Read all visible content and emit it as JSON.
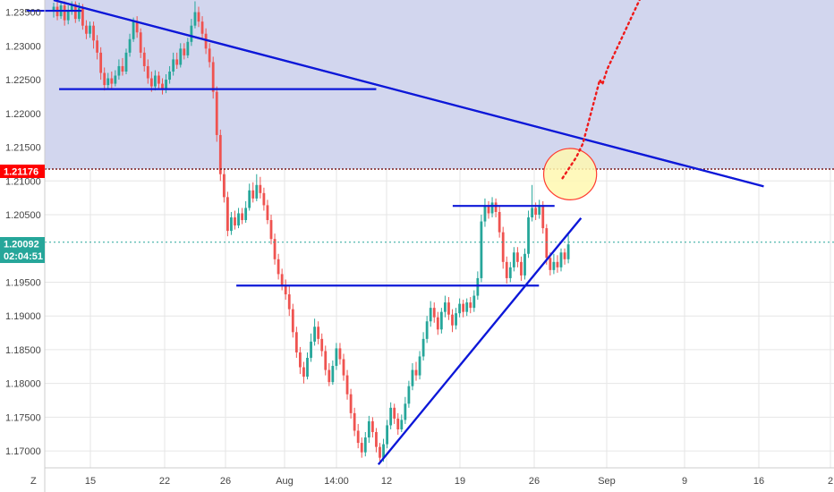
{
  "chart_data": {
    "type": "candlestick",
    "y_ticks": [
      "1.23500",
      "1.23000",
      "1.22500",
      "1.22000",
      "1.21500",
      "1.21000",
      "1.20500",
      "1.19500",
      "1.19000",
      "1.18500",
      "1.18000",
      "1.17500",
      "1.17000"
    ],
    "x_ticks": [
      "15",
      "22",
      "26",
      "Aug",
      "14:00",
      "12",
      "19",
      "26",
      "Sep",
      "9",
      "16",
      "2"
    ],
    "y_range": [
      1.1675,
      1.2368
    ],
    "resistance_level": {
      "label": "1.21176",
      "value": 1.21176,
      "color": "#ff0000"
    },
    "current_price": {
      "label": "1.20092",
      "value": 1.20092,
      "countdown": "02:04:51",
      "color": "#26a69a"
    },
    "timezone_label": "Z",
    "colors": {
      "up": "#26a69a",
      "down": "#ef5350",
      "trendline": "#0d18d8",
      "zone": "#d2d6ee",
      "projection": "#ef1a1a",
      "circle_fill": "#fff8b0",
      "circle_stroke": "#ff3b30"
    },
    "candles": [
      [
        1.2352,
        1.2358,
        1.2364,
        1.2342
      ],
      [
        1.2358,
        1.2344,
        1.2366,
        1.2338
      ],
      [
        1.2344,
        1.236,
        1.2366,
        1.234
      ],
      [
        1.236,
        1.2338,
        1.2366,
        1.233
      ],
      [
        1.2338,
        1.2352,
        1.236,
        1.2332
      ],
      [
        1.2352,
        1.2362,
        1.2366,
        1.2346
      ],
      [
        1.2362,
        1.234,
        1.2366,
        1.2334
      ],
      [
        1.234,
        1.2356,
        1.2364,
        1.2336
      ],
      [
        1.2356,
        1.233,
        1.2362,
        1.2324
      ],
      [
        1.233,
        1.2318,
        1.2338,
        1.231
      ],
      [
        1.2318,
        1.233,
        1.2336,
        1.2312
      ],
      [
        1.233,
        1.2308,
        1.2336,
        1.2296
      ],
      [
        1.2308,
        1.229,
        1.2316,
        1.228
      ],
      [
        1.229,
        1.226,
        1.2298,
        1.225
      ],
      [
        1.226,
        1.2242,
        1.2268,
        1.2234
      ],
      [
        1.2242,
        1.2252,
        1.226,
        1.2236
      ],
      [
        1.2252,
        1.2244,
        1.2262,
        1.2236
      ],
      [
        1.2244,
        1.2256,
        1.2264,
        1.224
      ],
      [
        1.2256,
        1.227,
        1.228,
        1.225
      ],
      [
        1.227,
        1.2262,
        1.2282,
        1.2256
      ],
      [
        1.2262,
        1.229,
        1.2296,
        1.2258
      ],
      [
        1.229,
        1.231,
        1.2318,
        1.2284
      ],
      [
        1.231,
        1.2336,
        1.2342,
        1.2306
      ],
      [
        1.2336,
        1.232,
        1.2344,
        1.2312
      ],
      [
        1.232,
        1.229,
        1.2326,
        1.2282
      ],
      [
        1.229,
        1.227,
        1.2298,
        1.2262
      ],
      [
        1.227,
        1.2252,
        1.228,
        1.2244
      ],
      [
        1.2252,
        1.224,
        1.2262,
        1.2232
      ],
      [
        1.224,
        1.2256,
        1.2264,
        1.2234
      ],
      [
        1.2256,
        1.2244,
        1.2262,
        1.2236
      ],
      [
        1.2244,
        1.2236,
        1.2252,
        1.2228
      ],
      [
        1.2236,
        1.225,
        1.2258,
        1.223
      ],
      [
        1.225,
        1.2262,
        1.227,
        1.2244
      ],
      [
        1.2262,
        1.228,
        1.229,
        1.2256
      ],
      [
        1.228,
        1.2272,
        1.229,
        1.2266
      ],
      [
        1.2272,
        1.2296,
        1.2304,
        1.2268
      ],
      [
        1.2296,
        1.2286,
        1.2304,
        1.228
      ],
      [
        1.2286,
        1.2306,
        1.2312,
        1.2282
      ],
      [
        1.2306,
        1.233,
        1.234,
        1.23
      ],
      [
        1.233,
        1.235,
        1.2366,
        1.2326
      ],
      [
        1.235,
        1.2336,
        1.2358,
        1.2328
      ],
      [
        1.2336,
        1.2318,
        1.2344,
        1.231
      ],
      [
        1.2318,
        1.2296,
        1.2326,
        1.2288
      ],
      [
        1.2296,
        1.2276,
        1.2304,
        1.2268
      ],
      [
        1.2276,
        1.2232,
        1.2284,
        1.2222
      ],
      [
        1.2232,
        1.2168,
        1.224,
        1.2158
      ],
      [
        1.2168,
        1.211,
        1.2176,
        1.21
      ],
      [
        1.211,
        1.2076,
        1.2118,
        1.2068
      ],
      [
        1.2076,
        1.2026,
        1.2084,
        1.2018
      ],
      [
        1.2026,
        1.2046,
        1.2054,
        1.202
      ],
      [
        1.2046,
        1.2034,
        1.2056,
        1.2028
      ],
      [
        1.2034,
        1.2052,
        1.206,
        1.203
      ],
      [
        1.2052,
        1.2042,
        1.206,
        1.2036
      ],
      [
        1.2042,
        1.206,
        1.207,
        1.2038
      ],
      [
        1.206,
        1.2086,
        1.2096,
        1.2056
      ],
      [
        1.2086,
        1.2074,
        1.2098,
        1.2068
      ],
      [
        1.2074,
        1.2094,
        1.211,
        1.207
      ],
      [
        1.2094,
        1.2082,
        1.2106,
        1.2074
      ],
      [
        1.2082,
        1.2064,
        1.209,
        1.2056
      ],
      [
        1.2064,
        1.2042,
        1.2072,
        1.2036
      ],
      [
        1.2042,
        1.2014,
        1.205,
        1.2006
      ],
      [
        1.2014,
        1.1984,
        1.2022,
        1.1976
      ],
      [
        1.1984,
        1.1962,
        1.1992,
        1.1954
      ],
      [
        1.1962,
        1.1946,
        1.197,
        1.1938
      ],
      [
        1.1946,
        1.1932,
        1.1954,
        1.1924
      ],
      [
        1.1932,
        1.191,
        1.1946,
        1.19
      ],
      [
        1.191,
        1.1876,
        1.1918,
        1.1868
      ],
      [
        1.1876,
        1.1846,
        1.1884,
        1.1838
      ],
      [
        1.1846,
        1.1824,
        1.1854,
        1.1814
      ],
      [
        1.1824,
        1.181,
        1.1832,
        1.18
      ],
      [
        1.181,
        1.1838,
        1.1846,
        1.1806
      ],
      [
        1.1838,
        1.1862,
        1.1874,
        1.1832
      ],
      [
        1.1862,
        1.1884,
        1.1896,
        1.1856
      ],
      [
        1.1884,
        1.1866,
        1.1892,
        1.1858
      ],
      [
        1.1866,
        1.1848,
        1.1874,
        1.184
      ],
      [
        1.1848,
        1.182,
        1.1856,
        1.1812
      ],
      [
        1.182,
        1.1802,
        1.183,
        1.1796
      ],
      [
        1.1802,
        1.1826,
        1.1834,
        1.1798
      ],
      [
        1.1826,
        1.1852,
        1.186,
        1.182
      ],
      [
        1.1852,
        1.1836,
        1.186,
        1.1828
      ],
      [
        1.1836,
        1.1812,
        1.1844,
        1.1804
      ],
      [
        1.1812,
        1.1784,
        1.182,
        1.1776
      ],
      [
        1.1784,
        1.1756,
        1.1792,
        1.1748
      ],
      [
        1.1756,
        1.173,
        1.1764,
        1.1722
      ],
      [
        1.173,
        1.1712,
        1.174,
        1.1704
      ],
      [
        1.1712,
        1.1698,
        1.172,
        1.169
      ],
      [
        1.1698,
        1.172,
        1.1728,
        1.1692
      ],
      [
        1.172,
        1.1744,
        1.1752,
        1.1712
      ],
      [
        1.1744,
        1.1728,
        1.175,
        1.172
      ],
      [
        1.1728,
        1.1706,
        1.1734,
        1.1698
      ],
      [
        1.1706,
        1.169,
        1.1712,
        1.1682
      ],
      [
        1.169,
        1.171,
        1.1718,
        1.1684
      ],
      [
        1.171,
        1.1738,
        1.1746,
        1.1704
      ],
      [
        1.1738,
        1.1764,
        1.1772,
        1.1732
      ],
      [
        1.1764,
        1.1748,
        1.177,
        1.174
      ],
      [
        1.1748,
        1.1732,
        1.1756,
        1.1724
      ],
      [
        1.1732,
        1.1746,
        1.1754,
        1.1728
      ],
      [
        1.1746,
        1.177,
        1.178,
        1.174
      ],
      [
        1.177,
        1.1796,
        1.1804,
        1.1764
      ],
      [
        1.1796,
        1.182,
        1.183,
        1.179
      ],
      [
        1.182,
        1.1812,
        1.1832,
        1.1804
      ],
      [
        1.1812,
        1.184,
        1.1848,
        1.1806
      ],
      [
        1.184,
        1.1866,
        1.1876,
        1.1834
      ],
      [
        1.1866,
        1.1892,
        1.19,
        1.186
      ],
      [
        1.1892,
        1.1912,
        1.1922,
        1.1884
      ],
      [
        1.1912,
        1.1898,
        1.192,
        1.189
      ],
      [
        1.1898,
        1.188,
        1.1906,
        1.1872
      ],
      [
        1.188,
        1.1906,
        1.1912,
        1.1874
      ],
      [
        1.1906,
        1.192,
        1.193,
        1.1898
      ],
      [
        1.192,
        1.1902,
        1.1928,
        1.1894
      ],
      [
        1.1902,
        1.1886,
        1.191,
        1.1876
      ],
      [
        1.1886,
        1.1904,
        1.1912,
        1.188
      ],
      [
        1.1904,
        1.1918,
        1.1926,
        1.1898
      ],
      [
        1.1918,
        1.1906,
        1.1924,
        1.1898
      ],
      [
        1.1906,
        1.192,
        1.1926,
        1.19
      ],
      [
        1.192,
        1.1912,
        1.1928,
        1.1904
      ],
      [
        1.1912,
        1.193,
        1.1938,
        1.1906
      ],
      [
        1.193,
        1.1956,
        1.1966,
        1.1924
      ],
      [
        1.1956,
        1.204,
        1.205,
        1.195
      ],
      [
        1.204,
        1.2064,
        1.2074,
        1.2032
      ],
      [
        1.2064,
        1.2052,
        1.207,
        1.2044
      ],
      [
        1.2052,
        1.2068,
        1.2076,
        1.2046
      ],
      [
        1.2068,
        1.2054,
        1.2074,
        1.2046
      ],
      [
        1.2054,
        1.2024,
        1.2062,
        1.2016
      ],
      [
        1.2024,
        1.198,
        1.2032,
        1.197
      ],
      [
        1.198,
        1.1956,
        1.1988,
        1.1948
      ],
      [
        1.1956,
        1.1972,
        1.198,
        1.195
      ],
      [
        1.1972,
        1.1994,
        1.2002,
        1.1966
      ],
      [
        1.1994,
        1.198,
        1.2002,
        1.1972
      ],
      [
        1.198,
        1.196,
        1.1988,
        1.1952
      ],
      [
        1.196,
        1.1992,
        1.2,
        1.1954
      ],
      [
        1.1992,
        1.2046,
        1.2056,
        1.1986
      ],
      [
        1.2046,
        1.206,
        1.2094,
        1.204
      ],
      [
        1.206,
        1.205,
        1.2068,
        1.2042
      ],
      [
        1.205,
        1.2064,
        1.2072,
        1.2044
      ],
      [
        1.2064,
        1.203,
        1.207,
        1.2022
      ],
      [
        1.203,
        1.1986,
        1.2036,
        1.1976
      ],
      [
        1.1986,
        1.1968,
        1.1994,
        1.196
      ],
      [
        1.1968,
        1.198,
        1.1992,
        1.1962
      ],
      [
        1.198,
        1.1972,
        1.199,
        1.1964
      ],
      [
        1.1972,
        1.1994,
        1.2,
        1.1966
      ],
      [
        1.1994,
        1.1984,
        1.2,
        1.1976
      ],
      [
        1.1984,
        1.2006,
        1.2022,
        1.1978
      ]
    ],
    "annotations": {
      "top_zone": {
        "from": 1.21176,
        "to": 1.2368
      },
      "lines": [
        {
          "name": "descending-trendline",
          "from": [
            0,
            1.2368
          ],
          "to": [
            195.9,
            1.2092
          ]
        },
        {
          "name": "rising-trendline",
          "from": [
            89.6,
            1.168
          ],
          "to": [
            145.5,
            1.2045
          ]
        },
        {
          "name": "top-left-level",
          "from": [
            -7.5,
            1.2352
          ],
          "to": [
            7.7,
            1.2352
          ]
        },
        {
          "name": "resistance-level-line",
          "from": [
            1.5,
            1.2236
          ],
          "to": [
            89.0,
            1.2236
          ]
        },
        {
          "name": "support-level-line",
          "from": [
            50.4,
            1.1945
          ],
          "to": [
            133.9,
            1.1945
          ]
        },
        {
          "name": "range-top-line",
          "from": [
            110.1,
            1.2063
          ],
          "to": [
            138.2,
            1.2063
          ]
        }
      ],
      "circle": {
        "center": [
          142.5,
          1.211
        ],
        "radius_x": 7.3,
        "radius_y": 0.0038
      },
      "projection": [
        [
          140.4,
          1.2104
        ],
        [
          144.2,
          1.2135
        ],
        [
          146.0,
          1.2155
        ],
        [
          150.7,
          1.225
        ],
        [
          151.4,
          1.2243
        ],
        [
          152.7,
          1.2265
        ],
        [
          162.7,
          1.238
        ]
      ]
    }
  }
}
